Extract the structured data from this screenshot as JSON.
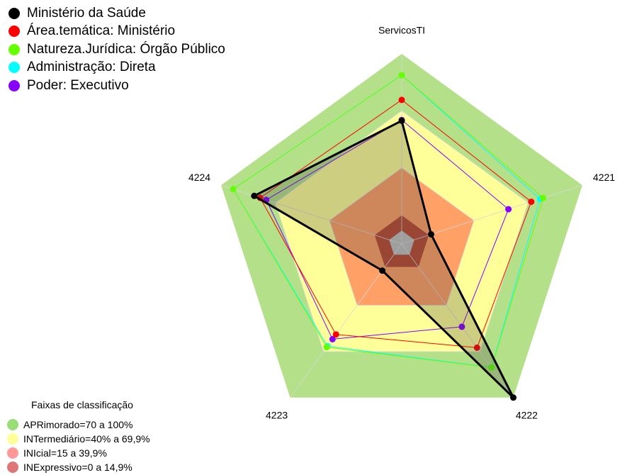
{
  "chart_data": {
    "type": "radar",
    "axes": [
      "ServicosTI",
      "4221",
      "4222",
      "4223",
      "4224"
    ],
    "series": [
      {
        "name": "Ministério da Saúde",
        "color": "#000000",
        "values": [
          0.648,
          0.163,
          1.0,
          0.174,
          0.817
        ]
      },
      {
        "name": "Área.temática: Ministério",
        "color": "#ff0000",
        "values": [
          0.758,
          0.717,
          0.675,
          0.589,
          0.784
        ]
      },
      {
        "name": "Natureza.Jurídica: Órgão Público",
        "color": "#66ff00",
        "values": [
          0.888,
          0.783,
          0.805,
          0.672,
          0.933
        ]
      },
      {
        "name": "Administração: Direta",
        "color": "#00ffff",
        "values": [
          0.888,
          0.766,
          0.804,
          0.665,
          0.933
        ]
      },
      {
        "name": "Poder: Executivo",
        "color": "#8800ff",
        "values": [
          0.652,
          0.591,
          0.539,
          0.62,
          0.75
        ]
      }
    ],
    "range": [
      0,
      1
    ],
    "classification": {
      "title": "Faixas de classificação",
      "bands": [
        {
          "label": "APRimorado=70 a 100%",
          "from": 0.7,
          "to": 1.0,
          "color": "#b5e08a",
          "legend_color": "#99dd77"
        },
        {
          "label": "INTermediário=40% a 69,9%",
          "from": 0.4,
          "to": 0.7,
          "color": "#ffff99",
          "legend_color": "#ffff99"
        },
        {
          "label": "INIcial=15 a 39,9%",
          "from": 0.15,
          "to": 0.4,
          "color": "#ffa066",
          "legend_color": "#ff9999"
        },
        {
          "label": "INExpressivo=0 a 14,9%",
          "from": 0.0,
          "to": 0.15,
          "color": "#b94a32",
          "legend_color": "#dd7777"
        }
      ],
      "core_color": "#c0c0c0",
      "core_to": 0.07
    },
    "legend_position": "top-left",
    "grid": true
  }
}
